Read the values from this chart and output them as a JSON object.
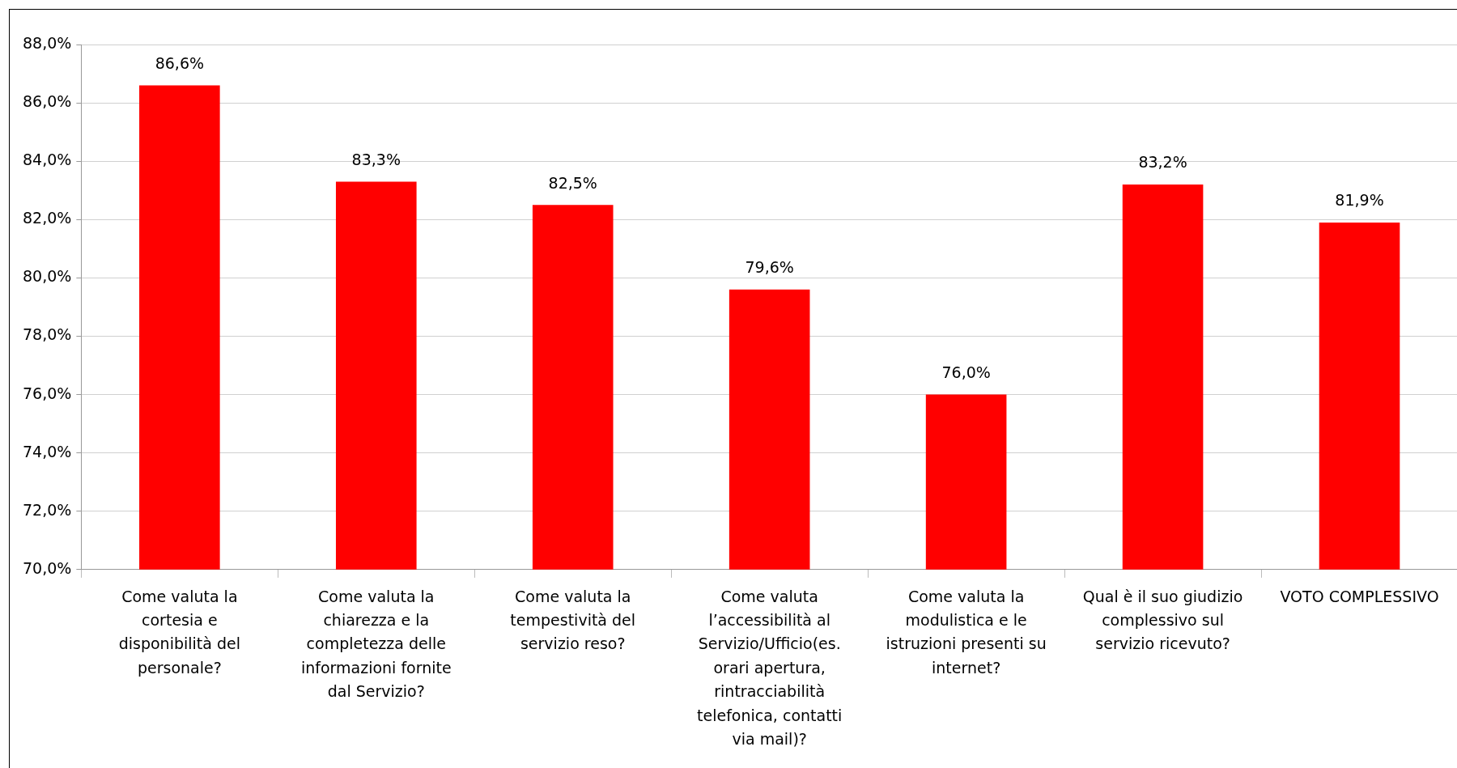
{
  "chart_data": {
    "type": "bar",
    "categories": [
      "Come valuta la cortesia e disponibilità del personale?",
      "Come valuta la chiarezza e la completezza delle informazioni fornite dal Servizio?",
      "Come valuta la tempestività del servizio reso?",
      "Come valuta l’accessibilità al Servizio/Ufficio(es. orari apertura, rintracciabilità telefonica, contatti via mail)?",
      "Come valuta la modulistica e le istruzioni presenti su internet?",
      "Qual è il suo giudizio complessivo sul servizio ricevuto?",
      "VOTO COMPLESSIVO"
    ],
    "values": [
      86.6,
      83.3,
      82.5,
      79.6,
      76.0,
      83.2,
      81.9
    ],
    "value_labels": [
      "86,6%",
      "83,3%",
      "82,5%",
      "79,6%",
      "76,0%",
      "83,2%",
      "81,9%"
    ],
    "color": "#ff0000",
    "ylim": [
      70,
      88
    ],
    "yticks": [
      {
        "value": 70,
        "label": "70,0%"
      },
      {
        "value": 72,
        "label": "72,0%"
      },
      {
        "value": 74,
        "label": "74,0%"
      },
      {
        "value": 76,
        "label": "76,0%"
      },
      {
        "value": 78,
        "label": "78,0%"
      },
      {
        "value": 80,
        "label": "80,0%"
      },
      {
        "value": 82,
        "label": "82,0%"
      },
      {
        "value": 84,
        "label": "84,0%"
      },
      {
        "value": 86,
        "label": "86,0%"
      },
      {
        "value": 88,
        "label": "88,0%"
      }
    ],
    "grid": "y",
    "legend": false
  }
}
